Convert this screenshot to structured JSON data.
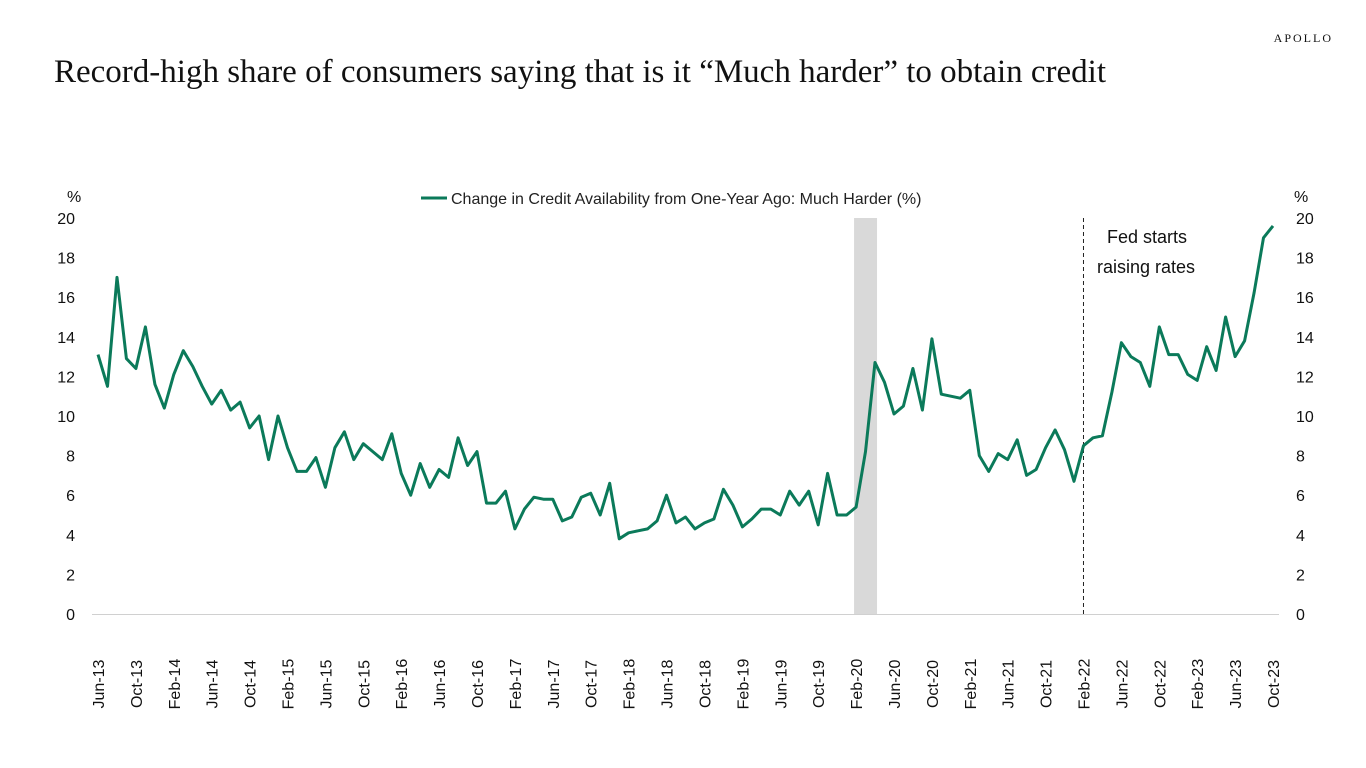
{
  "brand": "APOLLO",
  "title": "Record-high share of consumers saying that is it “Much harder” to obtain credit",
  "colors": {
    "line": "#0b7a5a",
    "shade": "#d9d9d9",
    "axis": "#d0d0d0",
    "text": "#111111"
  },
  "chart_data": {
    "type": "line",
    "title": "Record-high share of consumers saying that is it “Much harder” to obtain credit",
    "ylabel_left": "%",
    "ylabel_right": "%",
    "ylim": [
      0,
      20
    ],
    "yticks": [
      0,
      2,
      4,
      6,
      8,
      10,
      12,
      14,
      16,
      18,
      20
    ],
    "x_start": "Jun-13",
    "x_end": "Oct-23",
    "xticks": [
      "Jun-13",
      "Oct-13",
      "Feb-14",
      "Jun-14",
      "Oct-14",
      "Feb-15",
      "Jun-15",
      "Oct-15",
      "Feb-16",
      "Jun-16",
      "Oct-16",
      "Feb-17",
      "Jun-17",
      "Oct-17",
      "Feb-18",
      "Jun-18",
      "Oct-18",
      "Feb-19",
      "Jun-19",
      "Oct-19",
      "Feb-20",
      "Jun-20",
      "Oct-20",
      "Feb-21",
      "Jun-21",
      "Oct-21",
      "Feb-22",
      "Jun-22",
      "Oct-22",
      "Feb-23",
      "Jun-23",
      "Oct-23"
    ],
    "shaded_months": [
      80,
      82
    ],
    "vline_month": 104,
    "annotation": {
      "lines": [
        "Fed starts",
        "raising rates"
      ]
    },
    "series": [
      {
        "name": "Change in Credit Availability from One-Year Ago: Much Harder (%)",
        "values": [
          13.1,
          11.5,
          17.0,
          12.9,
          12.4,
          14.5,
          11.6,
          10.4,
          12.1,
          13.3,
          12.5,
          11.5,
          10.6,
          11.3,
          10.3,
          10.7,
          9.4,
          10.0,
          7.8,
          10.0,
          8.4,
          7.2,
          7.2,
          7.9,
          6.4,
          8.4,
          9.2,
          7.8,
          8.6,
          8.2,
          7.8,
          9.1,
          7.1,
          6.0,
          7.6,
          6.4,
          7.3,
          6.9,
          8.9,
          7.5,
          8.2,
          5.6,
          5.6,
          6.2,
          4.3,
          5.3,
          5.9,
          5.8,
          5.8,
          4.7,
          4.9,
          5.9,
          6.1,
          5.0,
          6.6,
          3.8,
          4.1,
          4.2,
          4.3,
          4.7,
          6.0,
          4.6,
          4.9,
          4.3,
          4.6,
          4.8,
          6.3,
          5.5,
          4.4,
          4.8,
          5.3,
          5.3,
          5.0,
          6.2,
          5.5,
          6.2,
          4.5,
          7.1,
          5.0,
          5.0,
          5.4,
          8.2,
          12.7,
          11.7,
          10.1,
          10.5,
          12.4,
          10.3,
          13.9,
          11.1,
          11.0,
          10.9,
          11.3,
          8.0,
          7.2,
          8.1,
          7.8,
          8.8,
          7.0,
          7.3,
          8.4,
          9.3,
          8.3,
          6.7,
          8.5,
          8.9,
          9.0,
          11.2,
          13.7,
          13.0,
          12.7,
          11.5,
          14.5,
          13.1,
          13.1,
          12.1,
          11.8,
          13.5,
          12.3,
          15.0,
          13.0,
          13.8,
          16.2,
          19.0,
          19.6
        ]
      }
    ]
  }
}
